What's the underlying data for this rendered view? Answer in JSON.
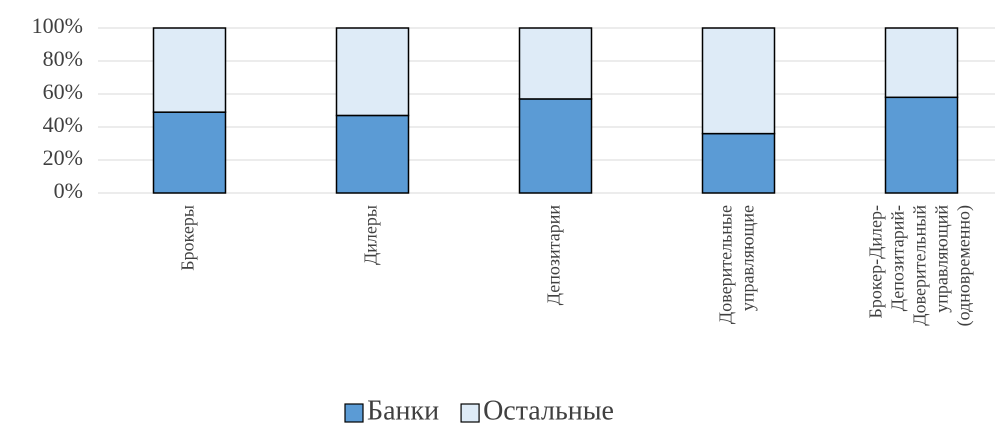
{
  "chart_data": {
    "type": "stacked_bar",
    "categories": [
      [
        "Брокеры"
      ],
      [
        "Дилеры"
      ],
      [
        "Депозитарии"
      ],
      [
        "Доверительные",
        "управляющие"
      ],
      [
        "Брокер-Дилер-",
        "Депозитарий-",
        "Доверительный",
        "управляющий",
        "(одновременно)"
      ]
    ],
    "series": [
      {
        "name": "Банки",
        "color": "#5b9bd5",
        "values": [
          49,
          47,
          57,
          36,
          58
        ]
      },
      {
        "name": "Остальные",
        "color": "#deebf7",
        "values": [
          51,
          53,
          43,
          64,
          42
        ]
      }
    ],
    "ylim": [
      0,
      100
    ],
    "yticks": [
      {
        "value": 0,
        "label": "0%"
      },
      {
        "value": 20,
        "label": "20%"
      },
      {
        "value": 40,
        "label": "40%"
      },
      {
        "value": 60,
        "label": "60%"
      },
      {
        "value": 80,
        "label": "80%"
      },
      {
        "value": 100,
        "label": "100%"
      }
    ],
    "grid": true,
    "legend": "bottom"
  }
}
